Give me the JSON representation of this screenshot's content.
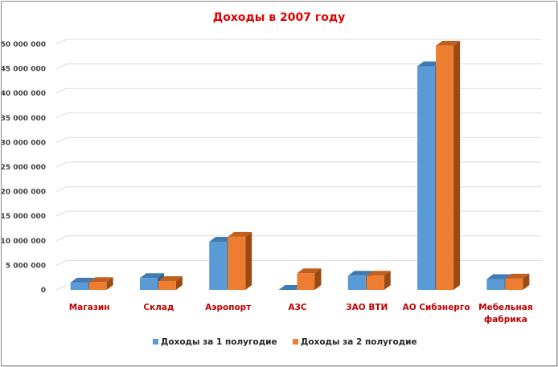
{
  "chart_data": {
    "type": "bar",
    "title": "Доходы в 2007 году",
    "xlabel": "",
    "ylabel": "",
    "categories": [
      "Магазин",
      "Склад",
      "Аэропорт",
      "АЗС",
      "ЗАО ВТИ",
      "АО Сибэнерго",
      [
        "Мебельная",
        "фабрика"
      ]
    ],
    "series": [
      {
        "name": "Доходы за 1 полугодие",
        "values": [
          1500000,
          2400000,
          9800000,
          0,
          2900000,
          45500000,
          2200000
        ]
      },
      {
        "name": "Доходы за 2 полугодие",
        "values": [
          1600000,
          1800000,
          10800000,
          3400000,
          2900000,
          49700000,
          2300000
        ]
      }
    ],
    "ylim": [
      0,
      50000000
    ],
    "yticks": [
      "0",
      "5 000 000",
      "10 000 000",
      "15 000 000",
      "20 000 000",
      "25 000 000",
      "30 000 000",
      "35 000 000",
      "40 000 000",
      "45 000 000",
      "50 000 000"
    ],
    "grid": true,
    "legend": "bottom",
    "colors": {
      "series1": "#5b9bd5",
      "series1_top": "#3f7ab3",
      "series1_side": "#2e5f8f",
      "series2": "#ed7d31",
      "series2_top": "#c0601f",
      "series2_side": "#9b4a14",
      "grid": "#d9d9d9"
    }
  }
}
